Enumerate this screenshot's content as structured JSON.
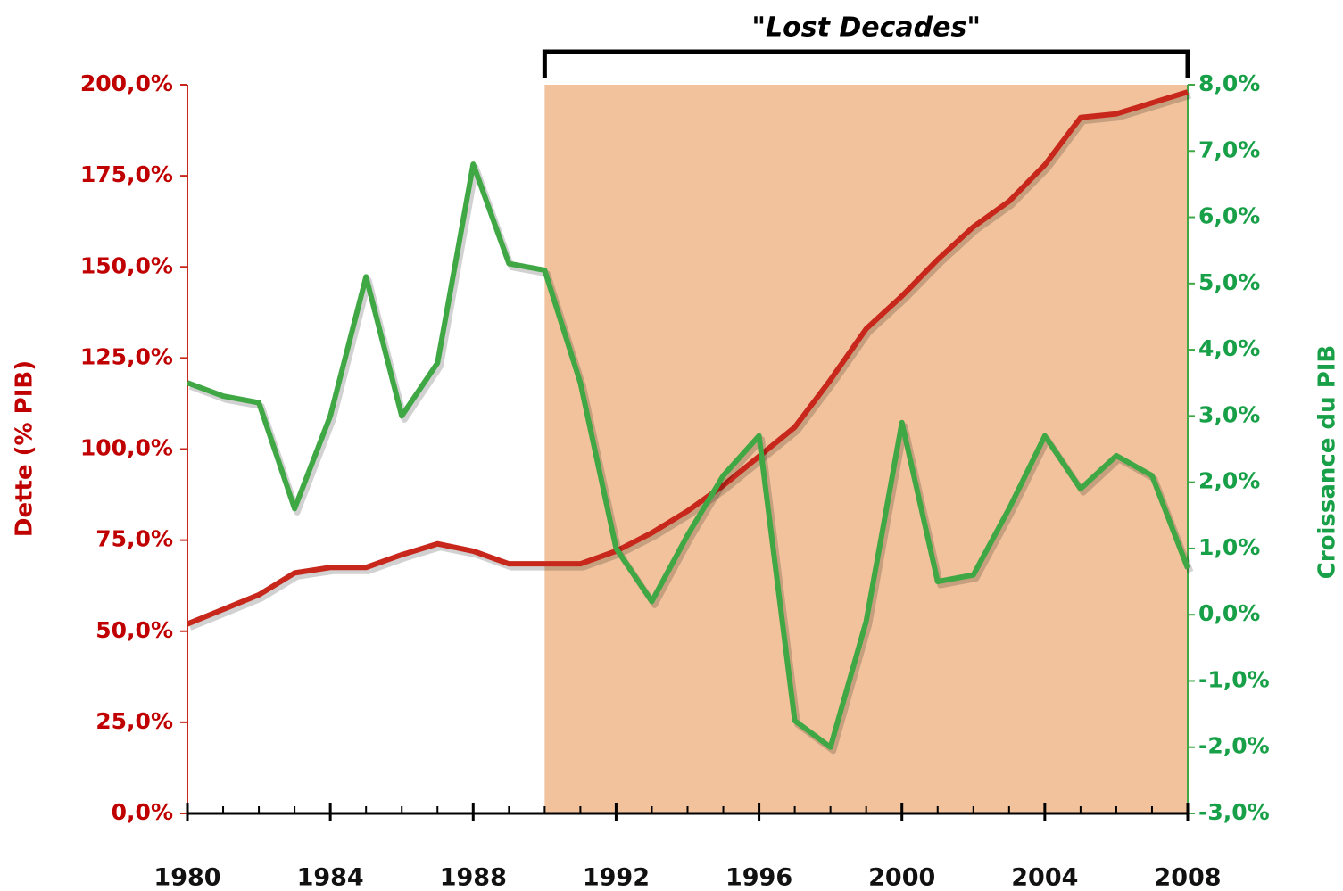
{
  "chart_data": {
    "type": "line",
    "x": [
      1980,
      1981,
      1982,
      1983,
      1984,
      1985,
      1986,
      1987,
      1988,
      1989,
      1990,
      1991,
      1992,
      1993,
      1994,
      1995,
      1996,
      1997,
      1998,
      1999,
      2000,
      2001,
      2002,
      2003,
      2004,
      2005,
      2006,
      2007,
      2008
    ],
    "series": [
      {
        "name": "Dette (% PIB)",
        "color": "#c8281c",
        "values": [
          52,
          56,
          60,
          66,
          67.5,
          67.5,
          71,
          74,
          72,
          68.5,
          68.5,
          68.5,
          72,
          77,
          83,
          90,
          98,
          106,
          119,
          133,
          142,
          152,
          161,
          168,
          178,
          191,
          192,
          195,
          198
        ]
      },
      {
        "name": "Croissance du PIB",
        "color": "#3fa845",
        "axis": "y2",
        "values": [
          3.5,
          3.3,
          3.2,
          1.6,
          3.0,
          5.1,
          3.0,
          3.8,
          6.8,
          5.3,
          5.2,
          3.5,
          1.0,
          0.2,
          1.2,
          2.1,
          2.7,
          -1.6,
          -2.0,
          -0.1,
          2.9,
          0.5,
          0.6,
          1.6,
          2.7,
          1.9,
          2.4,
          2.1,
          0.7
        ]
      }
    ],
    "ylabel": "Dette (% PIB)",
    "y2label": "Croissance du PIB",
    "xlim": [
      1980,
      2008
    ],
    "xticks": [
      1980,
      1984,
      1988,
      1992,
      1996,
      2000,
      2004,
      2008
    ],
    "ylim": [
      0,
      200
    ],
    "yticks": [
      {
        "value": 0,
        "label": "0,0%"
      },
      {
        "value": 25,
        "label": "25,0%"
      },
      {
        "value": 50,
        "label": "50,0%"
      },
      {
        "value": 75,
        "label": "75,0%"
      },
      {
        "value": 100,
        "label": "100,0%"
      },
      {
        "value": 125,
        "label": "125,0%"
      },
      {
        "value": 150,
        "label": "150,0%"
      },
      {
        "value": 175,
        "label": "175,0%"
      },
      {
        "value": 200,
        "label": "200,0%"
      }
    ],
    "y2lim": [
      -3,
      8
    ],
    "y2ticks": [
      {
        "value": -3,
        "label": "-3,0%"
      },
      {
        "value": -2,
        "label": "-2,0%"
      },
      {
        "value": -1,
        "label": "-1,0%"
      },
      {
        "value": 0,
        "label": "0,0%"
      },
      {
        "value": 1,
        "label": "1,0%"
      },
      {
        "value": 2,
        "label": "2,0%"
      },
      {
        "value": 3,
        "label": "3,0%"
      },
      {
        "value": 4,
        "label": "4,0%"
      },
      {
        "value": 5,
        "label": "5,0%"
      },
      {
        "value": 6,
        "label": "6,0%"
      },
      {
        "value": 7,
        "label": "7,0%"
      },
      {
        "value": 8,
        "label": "8,0%"
      }
    ],
    "shaded_region": {
      "from": 1990,
      "to": 2008,
      "color": "#f2c29c",
      "label": "\"Lost Decades\""
    },
    "grid": false
  }
}
